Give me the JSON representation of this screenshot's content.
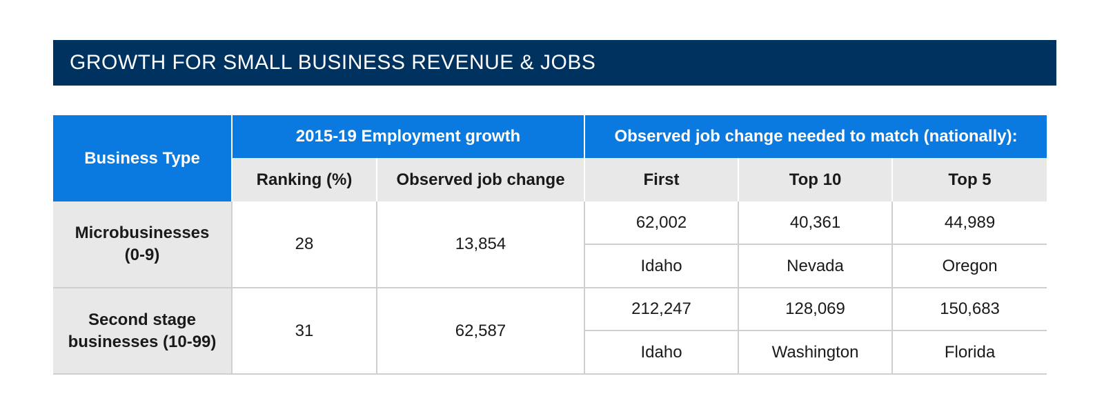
{
  "title": "GROWTH FOR SMALL BUSINESS REVENUE & JOBS",
  "chart_data": {
    "type": "table",
    "group_headers": {
      "business_type": "Business Type",
      "employment_growth": "2015-19 Employment growth",
      "match_nationally": "Observed job change needed to match (nationally):"
    },
    "columns": [
      "Ranking (%)",
      "Observed job change",
      "First",
      "Top 10",
      "Top 5"
    ],
    "rows": [
      {
        "business_type": "Microbusinesses (0-9)",
        "ranking": "28",
        "observed_job_change": "13,854",
        "first": "62,002",
        "first_state": "Idaho",
        "top10": "40,361",
        "top10_state": "Nevada",
        "top5": "44,989",
        "top5_state": "Oregon"
      },
      {
        "business_type": "Second stage businesses (10-99)",
        "ranking": "31",
        "observed_job_change": "62,587",
        "first": "212,247",
        "first_state": "Idaho",
        "top10": "128,069",
        "top10_state": "Washington",
        "top5": "150,683",
        "top5_state": "Florida"
      }
    ]
  }
}
